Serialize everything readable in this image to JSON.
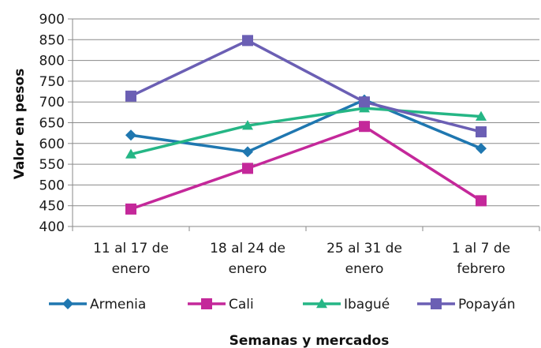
{
  "chart_data": {
    "type": "line",
    "title": "",
    "xlabel": "Semanas y mercados",
    "ylabel": "Valor en pesos",
    "ylim": [
      400,
      900
    ],
    "yticks": [
      400,
      450,
      500,
      550,
      600,
      650,
      700,
      750,
      800,
      850,
      900
    ],
    "grid": true,
    "legend_position": "bottom",
    "categories": [
      [
        "11 al 17 de",
        "enero"
      ],
      [
        "18 al 24 de",
        "enero"
      ],
      [
        "25 al 31 de",
        "enero"
      ],
      [
        "1 al 7 de",
        "febrero"
      ]
    ],
    "series": [
      {
        "name": "Armenia",
        "color": "#1f77b0",
        "marker": "diamond",
        "values": [
          620,
          580,
          705,
          588
        ]
      },
      {
        "name": "Cali",
        "color": "#c4289a",
        "marker": "square",
        "values": [
          442,
          540,
          641,
          462
        ]
      },
      {
        "name": "Ibagué",
        "color": "#25b685",
        "marker": "triangle",
        "values": [
          574,
          643,
          685,
          665
        ]
      },
      {
        "name": "Popayán",
        "color": "#6b5fb4",
        "marker": "square",
        "values": [
          714,
          848,
          700,
          628
        ]
      }
    ]
  }
}
